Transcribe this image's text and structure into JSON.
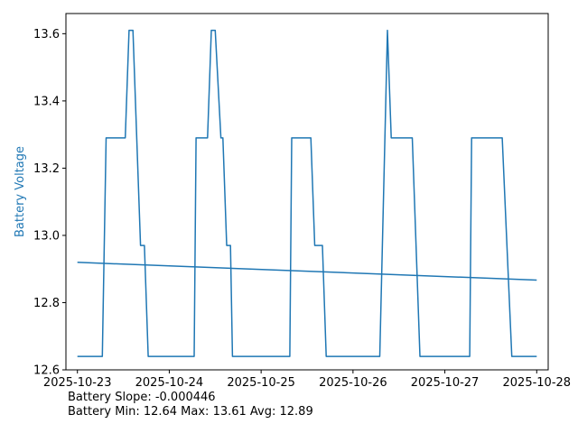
{
  "chart_data": {
    "type": "line",
    "ylabel": "Battery Voltage",
    "xlabel": "",
    "title": "",
    "colors": {
      "series": "#1f77b4",
      "ylabel": "#1f77b4"
    },
    "ylim": [
      12.6,
      13.66
    ],
    "xlim": [
      "2025-10-22T21:00",
      "2025-10-28T03:00"
    ],
    "yticks": [
      12.6,
      12.8,
      13.0,
      13.2,
      13.4,
      13.6
    ],
    "ytick_labels": [
      "12.6",
      "12.8",
      "13.0",
      "13.2",
      "13.4",
      "13.6"
    ],
    "xticks": [
      "2025-10-23T00:00",
      "2025-10-24T00:00",
      "2025-10-25T00:00",
      "2025-10-26T00:00",
      "2025-10-27T00:00",
      "2025-10-28T00:00"
    ],
    "xtick_labels": [
      "2025-10-23",
      "2025-10-24",
      "2025-10-25",
      "2025-10-26",
      "2025-10-27",
      "2025-10-28"
    ],
    "grid": false,
    "series": [
      {
        "x": [
          "2025-10-23T00:00",
          "2025-10-23T06:30",
          "2025-10-23T07:30",
          "2025-10-23T12:30",
          "2025-10-23T13:30",
          "2025-10-23T14:30",
          "2025-10-23T16:30",
          "2025-10-23T17:30",
          "2025-10-23T18:30",
          "2025-10-24T06:30",
          "2025-10-24T07:00",
          "2025-10-24T10:00",
          "2025-10-24T11:00",
          "2025-10-24T12:00",
          "2025-10-24T13:30",
          "2025-10-24T14:00",
          "2025-10-24T15:00",
          "2025-10-24T16:00",
          "2025-10-24T16:30",
          "2025-10-24T17:30",
          "2025-10-25T07:30",
          "2025-10-25T08:00",
          "2025-10-25T13:00",
          "2025-10-25T14:00",
          "2025-10-25T16:00",
          "2025-10-25T17:00",
          "2025-10-26T07:00",
          "2025-10-26T09:00",
          "2025-10-26T10:00",
          "2025-10-26T15:30",
          "2025-10-26T17:30",
          "2025-10-27T06:30",
          "2025-10-27T07:00",
          "2025-10-27T15:00",
          "2025-10-27T17:30",
          "2025-10-28T00:00"
        ],
        "y": [
          12.64,
          12.64,
          13.29,
          13.29,
          13.61,
          13.61,
          12.97,
          12.97,
          12.64,
          12.64,
          13.29,
          13.29,
          13.61,
          13.61,
          13.29,
          13.29,
          12.97,
          12.97,
          12.64,
          12.64,
          12.64,
          13.29,
          13.29,
          12.97,
          12.97,
          12.64,
          12.64,
          13.61,
          13.29,
          13.29,
          12.64,
          12.64,
          13.29,
          13.29,
          12.64,
          12.64
        ]
      },
      {
        "x": [
          "2025-10-23T00:00",
          "2025-10-28T00:00"
        ],
        "y": [
          12.92,
          12.867
        ]
      }
    ]
  },
  "stats": {
    "slope_line": "Battery Slope: -0.000446",
    "range_line": "Battery Min: 12.64 Max: 13.61 Avg: 12.89"
  }
}
